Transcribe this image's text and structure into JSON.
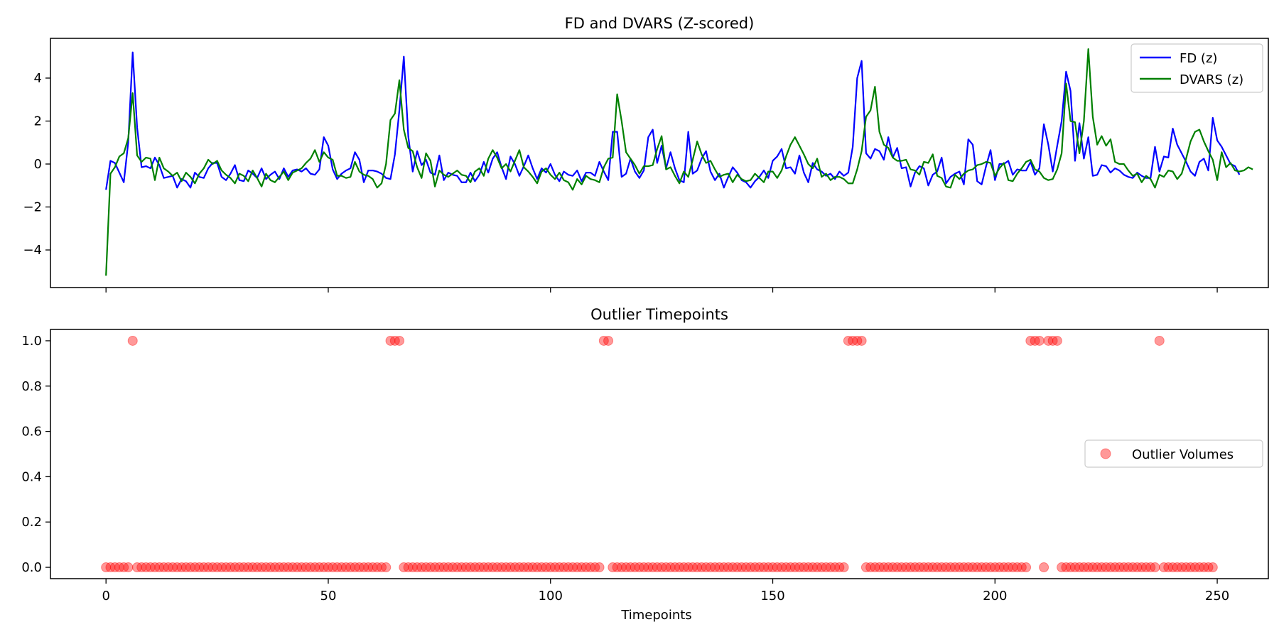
{
  "chart_data": [
    {
      "type": "line",
      "title": "FD and DVARS (Z-scored)",
      "xlabel": "",
      "ylabel": "",
      "xlim": [
        -12.5,
        261.5
      ],
      "ylim": [
        -5.75,
        5.85
      ],
      "xticks": [
        0,
        50,
        100,
        150,
        200,
        250
      ],
      "yticks": [
        -4,
        -2,
        0,
        2,
        4
      ],
      "ytick_labels": [
        "−4",
        "−2",
        "0",
        "2",
        "4"
      ],
      "legend_position": "top-right",
      "series": [
        {
          "name": "FD (z)",
          "color": "#0000ff",
          "y": [
            -1.2,
            0.15,
            0.05,
            -0.4,
            -0.85,
            1.0,
            5.2,
            1.7,
            -0.15,
            -0.1,
            -0.2,
            0.3,
            -0.05,
            -0.65,
            -0.6,
            -0.55,
            -1.1,
            -0.7,
            -0.8,
            -1.1,
            -0.4,
            -0.6,
            -0.65,
            -0.2,
            0.05,
            0.05,
            -0.6,
            -0.75,
            -0.45,
            -0.05,
            -0.75,
            -0.8,
            -0.3,
            -0.45,
            -0.65,
            -0.2,
            -0.7,
            -0.5,
            -0.35,
            -0.7,
            -0.2,
            -0.6,
            -0.3,
            -0.25,
            -0.35,
            -0.2,
            -0.45,
            -0.5,
            -0.25,
            1.25,
            0.85,
            -0.25,
            -0.7,
            -0.45,
            -0.3,
            -0.2,
            0.55,
            0.2,
            -0.85,
            -0.3,
            -0.3,
            -0.35,
            -0.45,
            -0.65,
            -0.7,
            0.45,
            2.5,
            5.0,
            1.3,
            -0.35,
            0.6,
            -0.05,
            0.2,
            -0.4,
            -0.5,
            0.4,
            -0.75,
            -0.4,
            -0.5,
            -0.55,
            -0.85,
            -0.85,
            -0.4,
            -0.8,
            -0.5,
            0.1,
            -0.4,
            0.25,
            0.55,
            -0.15,
            -0.7,
            0.35,
            0.0,
            -0.55,
            -0.1,
            0.4,
            -0.2,
            -0.7,
            -0.2,
            -0.4,
            0.0,
            -0.5,
            -0.8,
            -0.35,
            -0.5,
            -0.55,
            -0.3,
            -0.8,
            -0.4,
            -0.4,
            -0.55,
            0.1,
            -0.35,
            -0.75,
            1.5,
            1.5,
            -0.6,
            -0.45,
            0.25,
            -0.35,
            -0.65,
            -0.3,
            1.25,
            1.6,
            0.05,
            0.85,
            -0.2,
            0.55,
            -0.2,
            -0.75,
            -0.85,
            1.5,
            -0.45,
            -0.3,
            0.25,
            0.6,
            -0.35,
            -0.75,
            -0.45,
            -1.1,
            -0.6,
            -0.15,
            -0.4,
            -0.75,
            -0.85,
            -1.1,
            -0.8,
            -0.6,
            -0.3,
            -0.65,
            0.15,
            0.35,
            0.7,
            -0.2,
            -0.15,
            -0.45,
            0.4,
            -0.4,
            -0.85,
            0.05,
            -0.25,
            -0.35,
            -0.55,
            -0.45,
            -0.7,
            -0.35,
            -0.55,
            -0.4,
            0.8,
            4.0,
            4.8,
            0.5,
            0.25,
            0.7,
            0.6,
            0.2,
            1.25,
            0.3,
            0.75,
            -0.2,
            -0.15,
            -1.05,
            -0.4,
            -0.1,
            -0.2,
            -1.0,
            -0.5,
            -0.35,
            0.3,
            -0.9,
            -0.6,
            -0.45,
            -0.35,
            -0.95,
            1.15,
            0.9,
            -0.8,
            -0.95,
            -0.1,
            0.65,
            -0.75,
            0.0,
            0.0,
            0.15,
            -0.5,
            -0.25,
            -0.3,
            -0.3,
            0.1,
            -0.5,
            -0.2,
            1.85,
            0.9,
            -0.35,
            0.85,
            2.0,
            4.3,
            3.4,
            0.15,
            1.9,
            0.25,
            1.25,
            -0.55,
            -0.5,
            -0.05,
            -0.1,
            -0.4,
            -0.2,
            -0.3,
            -0.5,
            -0.6,
            -0.65,
            -0.4,
            -0.55,
            -0.65,
            -0.65,
            0.8,
            -0.35,
            0.35,
            0.3,
            1.65,
            0.9,
            0.5,
            0.1,
            -0.35,
            -0.55,
            0.1,
            0.25,
            -0.3,
            2.15,
            1.1,
            0.8,
            0.4,
            0.0,
            -0.1,
            -0.5
          ]
        },
        {
          "name": "DVARS (z)",
          "color": "#008000",
          "y": [
            -5.2,
            -0.45,
            -0.15,
            0.35,
            0.5,
            1.2,
            3.3,
            0.4,
            0.1,
            0.3,
            0.25,
            -0.75,
            0.3,
            -0.2,
            -0.35,
            -0.55,
            -0.4,
            -0.8,
            -0.4,
            -0.6,
            -0.9,
            -0.45,
            -0.2,
            0.2,
            0.0,
            0.15,
            -0.3,
            -0.5,
            -0.65,
            -0.9,
            -0.45,
            -0.55,
            -0.8,
            -0.3,
            -0.65,
            -1.05,
            -0.45,
            -0.75,
            -0.85,
            -0.6,
            -0.35,
            -0.75,
            -0.4,
            -0.3,
            -0.2,
            0.05,
            0.25,
            0.65,
            0.1,
            0.55,
            0.3,
            0.2,
            -0.55,
            -0.55,
            -0.65,
            -0.6,
            0.1,
            -0.35,
            -0.5,
            -0.55,
            -0.7,
            -1.1,
            -0.9,
            0.0,
            2.05,
            2.35,
            3.9,
            1.6,
            0.75,
            0.6,
            -0.15,
            -0.65,
            0.5,
            0.15,
            -1.05,
            -0.3,
            -0.5,
            -0.6,
            -0.45,
            -0.3,
            -0.5,
            -0.55,
            -0.85,
            -0.35,
            -0.2,
            -0.55,
            0.25,
            0.65,
            0.3,
            -0.2,
            0.0,
            -0.35,
            0.15,
            0.65,
            -0.15,
            -0.35,
            -0.6,
            -0.9,
            -0.35,
            -0.2,
            -0.5,
            -0.7,
            -0.4,
            -0.75,
            -0.85,
            -1.2,
            -0.7,
            -0.95,
            -0.55,
            -0.7,
            -0.75,
            -0.85,
            -0.15,
            0.25,
            0.3,
            3.25,
            2.0,
            0.55,
            0.25,
            -0.05,
            -0.45,
            -0.1,
            -0.1,
            -0.05,
            0.7,
            1.3,
            -0.25,
            -0.15,
            -0.55,
            -0.9,
            -0.35,
            -0.6,
            0.2,
            1.05,
            0.45,
            0.05,
            0.15,
            -0.25,
            -0.6,
            -0.5,
            -0.45,
            -0.85,
            -0.5,
            -0.7,
            -0.8,
            -0.75,
            -0.45,
            -0.65,
            -0.85,
            -0.35,
            -0.35,
            -0.65,
            -0.3,
            0.35,
            0.9,
            1.25,
            0.85,
            0.45,
            0.0,
            -0.2,
            0.25,
            -0.6,
            -0.45,
            -0.75,
            -0.6,
            -0.6,
            -0.7,
            -0.9,
            -0.9,
            -0.25,
            0.6,
            2.2,
            2.5,
            3.6,
            1.5,
            0.9,
            0.75,
            0.3,
            0.15,
            0.15,
            0.2,
            -0.25,
            -0.3,
            -0.5,
            0.1,
            0.05,
            0.45,
            -0.55,
            -0.65,
            -1.05,
            -1.1,
            -0.5,
            -0.7,
            -0.45,
            -0.3,
            -0.25,
            -0.05,
            0.0,
            0.1,
            0.05,
            -0.55,
            -0.2,
            0.05,
            -0.75,
            -0.8,
            -0.45,
            -0.2,
            0.1,
            0.2,
            -0.25,
            -0.35,
            -0.65,
            -0.75,
            -0.7,
            -0.25,
            0.5,
            3.75,
            2.0,
            1.95,
            0.5,
            2.0,
            5.35,
            2.2,
            0.9,
            1.3,
            0.85,
            1.15,
            0.1,
            0.0,
            0.0,
            -0.3,
            -0.55,
            -0.45,
            -0.85,
            -0.55,
            -0.7,
            -1.1,
            -0.5,
            -0.6,
            -0.3,
            -0.35,
            -0.7,
            -0.45,
            0.25,
            1.05,
            1.5,
            1.6,
            1.05,
            0.6,
            0.2,
            -0.75,
            0.55,
            -0.15,
            0.05,
            -0.3,
            -0.35,
            -0.3,
            -0.15,
            -0.25
          ]
        }
      ]
    },
    {
      "type": "scatter",
      "title": "Outlier Timepoints",
      "xlabel": "Timepoints",
      "ylabel": "",
      "xlim": [
        -12.5,
        261.5
      ],
      "ylim": [
        -0.05,
        1.05
      ],
      "xticks": [
        0,
        50,
        100,
        150,
        200,
        250
      ],
      "yticks": [
        0.0,
        0.2,
        0.4,
        0.6,
        0.8,
        1.0
      ],
      "ytick_labels": [
        "0.0",
        "0.2",
        "0.4",
        "0.6",
        "0.8",
        "1.0"
      ],
      "legend_position": "center-right",
      "series": [
        {
          "name": "Outlier Volumes",
          "color": "#ff0000",
          "alpha": 0.4,
          "n_points": 250,
          "outlier_indices": [
            6,
            64,
            65,
            66,
            112,
            113,
            167,
            168,
            169,
            170,
            208,
            209,
            210,
            212,
            213,
            214,
            237
          ]
        }
      ]
    }
  ]
}
